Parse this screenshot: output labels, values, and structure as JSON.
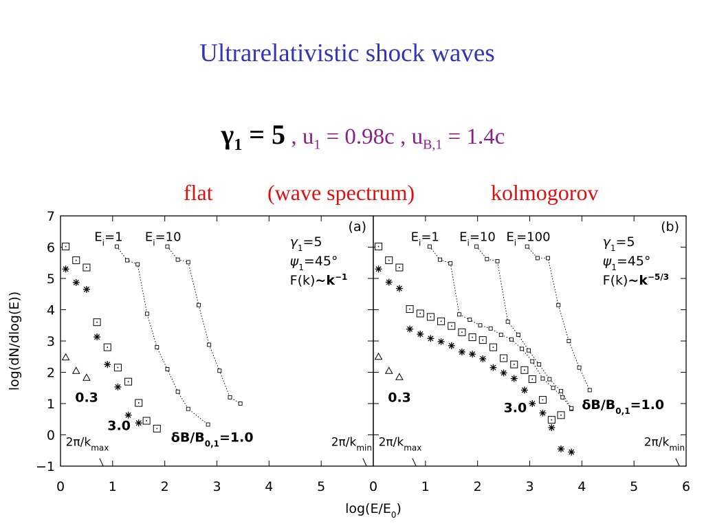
{
  "slide": {
    "title": "Ultrarelativistic shock waves",
    "gamma_label": "γ",
    "gamma_sub": "1",
    "gamma_value": " = 5",
    "u_text": " , u",
    "u_sub": "1",
    "u_value": " = 0.98c , u",
    "uB_sub": "B,1",
    "uB_value": " = 1.4c",
    "flat": "flat",
    "wave": "(wave spectrum)",
    "kolmogorov": "kolmogorov"
  },
  "chart_data": {
    "type": "scatter",
    "xlabel": "log(E/E",
    "xlabel_sub": "0",
    "xlabel_end": ")",
    "ylabel": "log(dN/dlog(E))",
    "ylim": [
      -1,
      7
    ],
    "y_ticks": [
      "7",
      "6",
      "5",
      "4",
      "3",
      "2",
      "1",
      "0",
      "−1"
    ],
    "panels": [
      {
        "id": "(a)",
        "xlim": [
          0,
          6
        ],
        "x_ticks": [
          "0",
          "1",
          "2",
          "3",
          "4",
          "5"
        ],
        "info": [
          "γ",
          "1",
          "=5",
          "ψ",
          "1",
          "=45°",
          "F(k)",
          "~k",
          "−1"
        ],
        "Ei_labels": [
          {
            "text": "E",
            "sub": "i",
            "val": "=1",
            "x": 0.65,
            "y": 6.2
          },
          {
            "text": "E",
            "sub": "i",
            "val": "=10",
            "x": 1.62,
            "y": 6.2
          }
        ],
        "k_max_label": "2π/k",
        "k_max_sub": "max",
        "k_min_label": "2π/k",
        "k_min_sub": "min",
        "dB_labels": [
          "0.3",
          "3.0",
          "δB/B",
          "0,1",
          "=1.0"
        ],
        "series": [
          {
            "marker": "triangle",
            "points": [
              [
                0.1,
                2.48
              ],
              [
                0.3,
                2.05
              ],
              [
                0.5,
                1.83
              ]
            ]
          },
          {
            "marker": "star",
            "points": [
              [
                0.1,
                5.3
              ],
              [
                0.3,
                4.87
              ],
              [
                0.5,
                4.65
              ],
              [
                0.7,
                3.13
              ],
              [
                0.9,
                2.25
              ],
              [
                1.1,
                1.53
              ],
              [
                1.3,
                0.63
              ],
              [
                1.5,
                0.38
              ]
            ]
          },
          {
            "marker": "box",
            "points": [
              [
                0.1,
                6.02
              ],
              [
                0.3,
                5.58
              ],
              [
                0.5,
                5.35
              ],
              [
                0.7,
                3.6
              ],
              [
                0.9,
                2.8
              ],
              [
                1.1,
                2.15
              ],
              [
                1.3,
                1.7
              ],
              [
                1.5,
                1.02
              ],
              [
                1.65,
                0.45
              ],
              [
                1.85,
                0.2
              ]
            ]
          },
          {
            "marker": "small",
            "dotted": true,
            "points": [
              [
                1.08,
                6.02
              ],
              [
                1.28,
                5.58
              ],
              [
                1.48,
                5.45
              ],
              [
                1.66,
                3.87
              ],
              [
                1.85,
                2.8
              ],
              [
                2.05,
                2.1
              ],
              [
                2.25,
                1.38
              ],
              [
                2.45,
                0.83
              ],
              [
                2.83,
                0.33
              ]
            ]
          },
          {
            "marker": "small",
            "dotted": true,
            "points": [
              [
                2.05,
                6.02
              ],
              [
                2.25,
                5.6
              ],
              [
                2.45,
                5.52
              ],
              [
                2.65,
                4.15
              ],
              [
                2.85,
                2.88
              ],
              [
                3.05,
                2.05
              ],
              [
                3.25,
                1.2
              ],
              [
                3.45,
                1.0
              ]
            ]
          }
        ]
      },
      {
        "id": "(b)",
        "xlim": [
          0,
          6
        ],
        "x_ticks": [
          "0",
          "1",
          "2",
          "3",
          "4",
          "5",
          "6"
        ],
        "info": [
          "γ",
          "1",
          "=5",
          "ψ",
          "1",
          "=45°",
          "F(k)",
          "~k",
          "−5/3"
        ],
        "Ei_labels": [
          {
            "text": "E",
            "sub": "i",
            "val": "=1",
            "x": 0.72,
            "y": 6.2
          },
          {
            "text": "E",
            "sub": "i",
            "val": "=10",
            "x": 1.65,
            "y": 6.2
          },
          {
            "text": "E",
            "sub": "i",
            "val": "=100",
            "x": 2.55,
            "y": 6.2
          }
        ],
        "k_max_label": "2π/k",
        "k_max_sub": "max",
        "k_min_label": "2π/k",
        "k_min_sub": "min",
        "dB_labels": [
          "0.3",
          "3.0",
          "δB/B",
          "0,1",
          "=1.0"
        ],
        "series": [
          {
            "marker": "triangle",
            "points": [
              [
                0.1,
                2.5
              ],
              [
                0.3,
                2.05
              ],
              [
                0.5,
                1.85
              ]
            ]
          },
          {
            "marker": "star",
            "points": [
              [
                0.1,
                5.3
              ],
              [
                0.3,
                4.88
              ],
              [
                0.5,
                4.68
              ],
              [
                0.7,
                3.38
              ],
              [
                0.9,
                3.22
              ],
              [
                1.1,
                3.08
              ],
              [
                1.3,
                2.98
              ],
              [
                1.5,
                2.85
              ],
              [
                1.7,
                2.65
              ],
              [
                1.9,
                2.58
              ],
              [
                2.1,
                2.43
              ],
              [
                2.3,
                2.15
              ],
              [
                2.5,
                1.98
              ],
              [
                2.7,
                1.8
              ],
              [
                2.9,
                1.43
              ],
              [
                3.05,
                1.0
              ],
              [
                3.25,
                0.7
              ],
              [
                3.42,
                0.23
              ],
              [
                3.6,
                -0.45
              ],
              [
                3.8,
                -0.55
              ]
            ]
          },
          {
            "marker": "box",
            "points": [
              [
                0.1,
                6.02
              ],
              [
                0.3,
                5.58
              ],
              [
                0.5,
                5.35
              ],
              [
                0.7,
                4.02
              ],
              [
                0.9,
                3.88
              ],
              [
                1.1,
                3.77
              ],
              [
                1.3,
                3.63
              ],
              [
                1.5,
                3.48
              ],
              [
                1.7,
                3.28
              ],
              [
                1.9,
                3.12
              ],
              [
                2.1,
                3.03
              ],
              [
                2.3,
                2.8
              ],
              [
                2.5,
                2.45
              ],
              [
                2.7,
                2.25
              ],
              [
                2.9,
                2.07
              ],
              [
                3.05,
                1.78
              ],
              [
                3.25,
                1.12
              ],
              [
                3.42,
                0.48
              ],
              [
                3.6,
                0.63
              ]
            ]
          },
          {
            "marker": "small",
            "dotted": true,
            "points": [
              [
                1.08,
                6.02
              ],
              [
                1.28,
                5.6
              ],
              [
                1.48,
                5.48
              ],
              [
                1.65,
                3.85
              ],
              [
                1.85,
                3.68
              ],
              [
                2.05,
                3.5
              ],
              [
                2.25,
                3.4
              ],
              [
                2.45,
                3.2
              ],
              [
                2.65,
                3.05
              ],
              [
                2.85,
                2.75
              ],
              [
                3.05,
                2.35
              ],
              [
                3.25,
                1.8
              ],
              [
                3.45,
                1.5
              ],
              [
                3.63,
                1.2
              ],
              [
                3.8,
                0.83
              ]
            ]
          },
          {
            "marker": "small",
            "dotted": true,
            "points": [
              [
                1.98,
                6.02
              ],
              [
                2.18,
                5.62
              ],
              [
                2.38,
                5.55
              ],
              [
                2.58,
                3.62
              ],
              [
                2.78,
                3.2
              ],
              [
                2.98,
                2.7
              ],
              [
                3.18,
                2.25
              ],
              [
                3.38,
                1.78
              ],
              [
                3.6,
                1.4
              ],
              [
                3.8,
                0.85
              ]
            ]
          },
          {
            "marker": "small",
            "dotted": true,
            "points": [
              [
                2.95,
                6.02
              ],
              [
                3.15,
                5.65
              ],
              [
                3.35,
                5.65
              ],
              [
                3.55,
                4.15
              ],
              [
                3.75,
                3.0
              ],
              [
                3.95,
                2.15
              ],
              [
                4.15,
                1.43
              ]
            ]
          }
        ]
      }
    ]
  }
}
